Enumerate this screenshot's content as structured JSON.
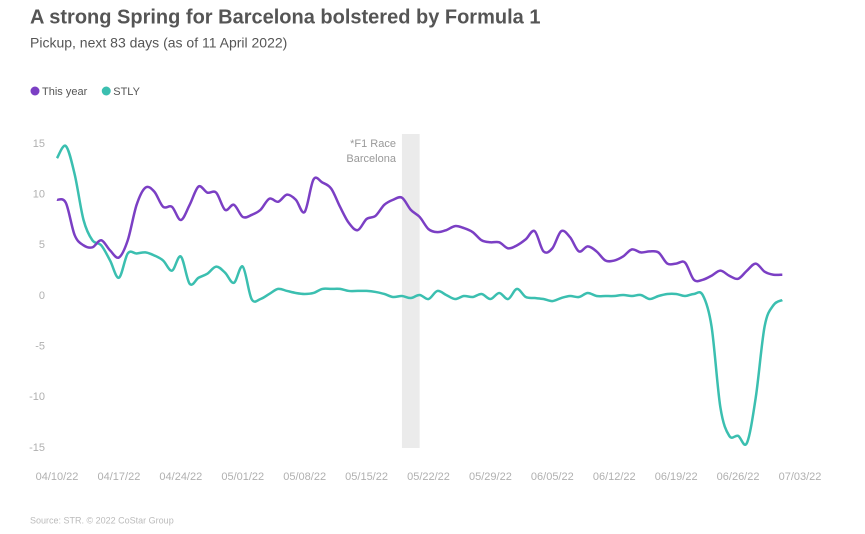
{
  "chart_data": {
    "type": "line",
    "title": "A strong Spring for Barcelona bolstered by Formula 1",
    "subtitle": "Pickup, next 83 days (as of 11 April 2022)",
    "source": "Source: STR. © 2022 CoStar Group",
    "legend": "top-left",
    "grid": false,
    "x": [
      "04/10/22",
      "04/11/22",
      "04/12/22",
      "04/13/22",
      "04/14/22",
      "04/15/22",
      "04/16/22",
      "04/17/22",
      "04/18/22",
      "04/19/22",
      "04/20/22",
      "04/21/22",
      "04/22/22",
      "04/23/22",
      "04/24/22",
      "04/25/22",
      "04/26/22",
      "04/27/22",
      "04/28/22",
      "04/29/22",
      "04/30/22",
      "05/01/22",
      "05/02/22",
      "05/03/22",
      "05/04/22",
      "05/05/22",
      "05/06/22",
      "05/07/22",
      "05/08/22",
      "05/09/22",
      "05/10/22",
      "05/11/22",
      "05/12/22",
      "05/13/22",
      "05/14/22",
      "05/15/22",
      "05/16/22",
      "05/17/22",
      "05/18/22",
      "05/19/22",
      "05/20/22",
      "05/21/22",
      "05/22/22",
      "05/23/22",
      "05/24/22",
      "05/25/22",
      "05/26/22",
      "05/27/22",
      "05/28/22",
      "05/29/22",
      "05/30/22",
      "05/31/22",
      "06/01/22",
      "06/02/22",
      "06/03/22",
      "06/04/22",
      "06/05/22",
      "06/06/22",
      "06/07/22",
      "06/08/22",
      "06/09/22",
      "06/10/22",
      "06/11/22",
      "06/12/22",
      "06/13/22",
      "06/14/22",
      "06/15/22",
      "06/16/22",
      "06/17/22",
      "06/18/22",
      "06/19/22",
      "06/20/22",
      "06/21/22",
      "06/22/22",
      "06/23/22",
      "06/24/22",
      "06/25/22",
      "06/26/22",
      "06/27/22",
      "06/28/22",
      "06/29/22",
      "06/30/22",
      "07/01/22"
    ],
    "series": [
      {
        "name": "This year",
        "color": "#7b3fc4",
        "values": [
          9.5,
          9.2,
          6,
          5,
          4.8,
          5.5,
          4.5,
          3.8,
          5.5,
          9,
          10.7,
          10.3,
          8.8,
          8.8,
          7.5,
          9,
          10.8,
          10.2,
          10.2,
          8.5,
          9,
          7.8,
          8,
          8.5,
          9.6,
          9.3,
          10,
          9.5,
          8.3,
          11.5,
          11.2,
          10.6,
          8.8,
          7.2,
          6.5,
          7.6,
          7.9,
          9,
          9.5,
          9.7,
          8.5,
          7.8,
          6.6,
          6.3,
          6.5,
          6.9,
          6.7,
          6.3,
          5.5,
          5.3,
          5.3,
          4.7,
          5,
          5.6,
          6.4,
          4.4,
          4.7,
          6.4,
          5.8,
          4.4,
          4.9,
          4.4,
          3.5,
          3.5,
          3.9,
          4.6,
          4.3,
          4.4,
          4.3,
          3.2,
          3.2,
          3.3,
          1.6,
          1.6,
          2,
          2.5,
          2,
          1.7,
          2.5,
          3.2,
          2.4,
          2.1,
          2.1
        ]
      },
      {
        "name": "STLY",
        "color": "#3bbfb0",
        "values": [
          13.6,
          14.8,
          12,
          7.5,
          5.5,
          5,
          3.5,
          1.8,
          4.2,
          4.2,
          4.3,
          4,
          3.5,
          2.5,
          3.9,
          1.2,
          1.8,
          2.2,
          2.9,
          2.3,
          1.3,
          2.9,
          -0.3,
          -0.3,
          0.2,
          0.7,
          0.5,
          0.3,
          0.2,
          0.3,
          0.7,
          0.7,
          0.7,
          0.5,
          0.5,
          0.5,
          0.4,
          0.2,
          -0.1,
          0,
          -0.2,
          0.1,
          -0.3,
          0.5,
          0.1,
          -0.3,
          0,
          -0.1,
          0.2,
          -0.3,
          0.3,
          -0.3,
          0.7,
          -0.1,
          -0.2,
          -0.3,
          -0.5,
          -0.2,
          0,
          -0.1,
          0.3,
          0,
          0,
          0,
          0.1,
          0,
          0.1,
          -0.3,
          0,
          0.2,
          0.2,
          0,
          0.2,
          0.1,
          -3,
          -11,
          -13.8,
          -13.8,
          -14.5,
          -10,
          -3,
          -0.9,
          -0.4
        ]
      }
    ],
    "xlim": [
      "04/10/22",
      "07/03/22"
    ],
    "xticks": [
      "04/10/22",
      "04/17/22",
      "04/24/22",
      "05/01/22",
      "05/08/22",
      "05/15/22",
      "05/22/22",
      "05/29/22",
      "06/05/22",
      "06/12/22",
      "06/19/22",
      "06/26/22",
      "07/03/22"
    ],
    "ylim": [
      -15,
      15
    ],
    "yticks": [
      15,
      10,
      5,
      0,
      -5,
      -10,
      -15
    ],
    "highlight": {
      "x": [
        "05/19/22",
        "05/21/22"
      ],
      "label": [
        "*F1 Race",
        "Barcelona"
      ],
      "color": "#ebebeb"
    }
  }
}
